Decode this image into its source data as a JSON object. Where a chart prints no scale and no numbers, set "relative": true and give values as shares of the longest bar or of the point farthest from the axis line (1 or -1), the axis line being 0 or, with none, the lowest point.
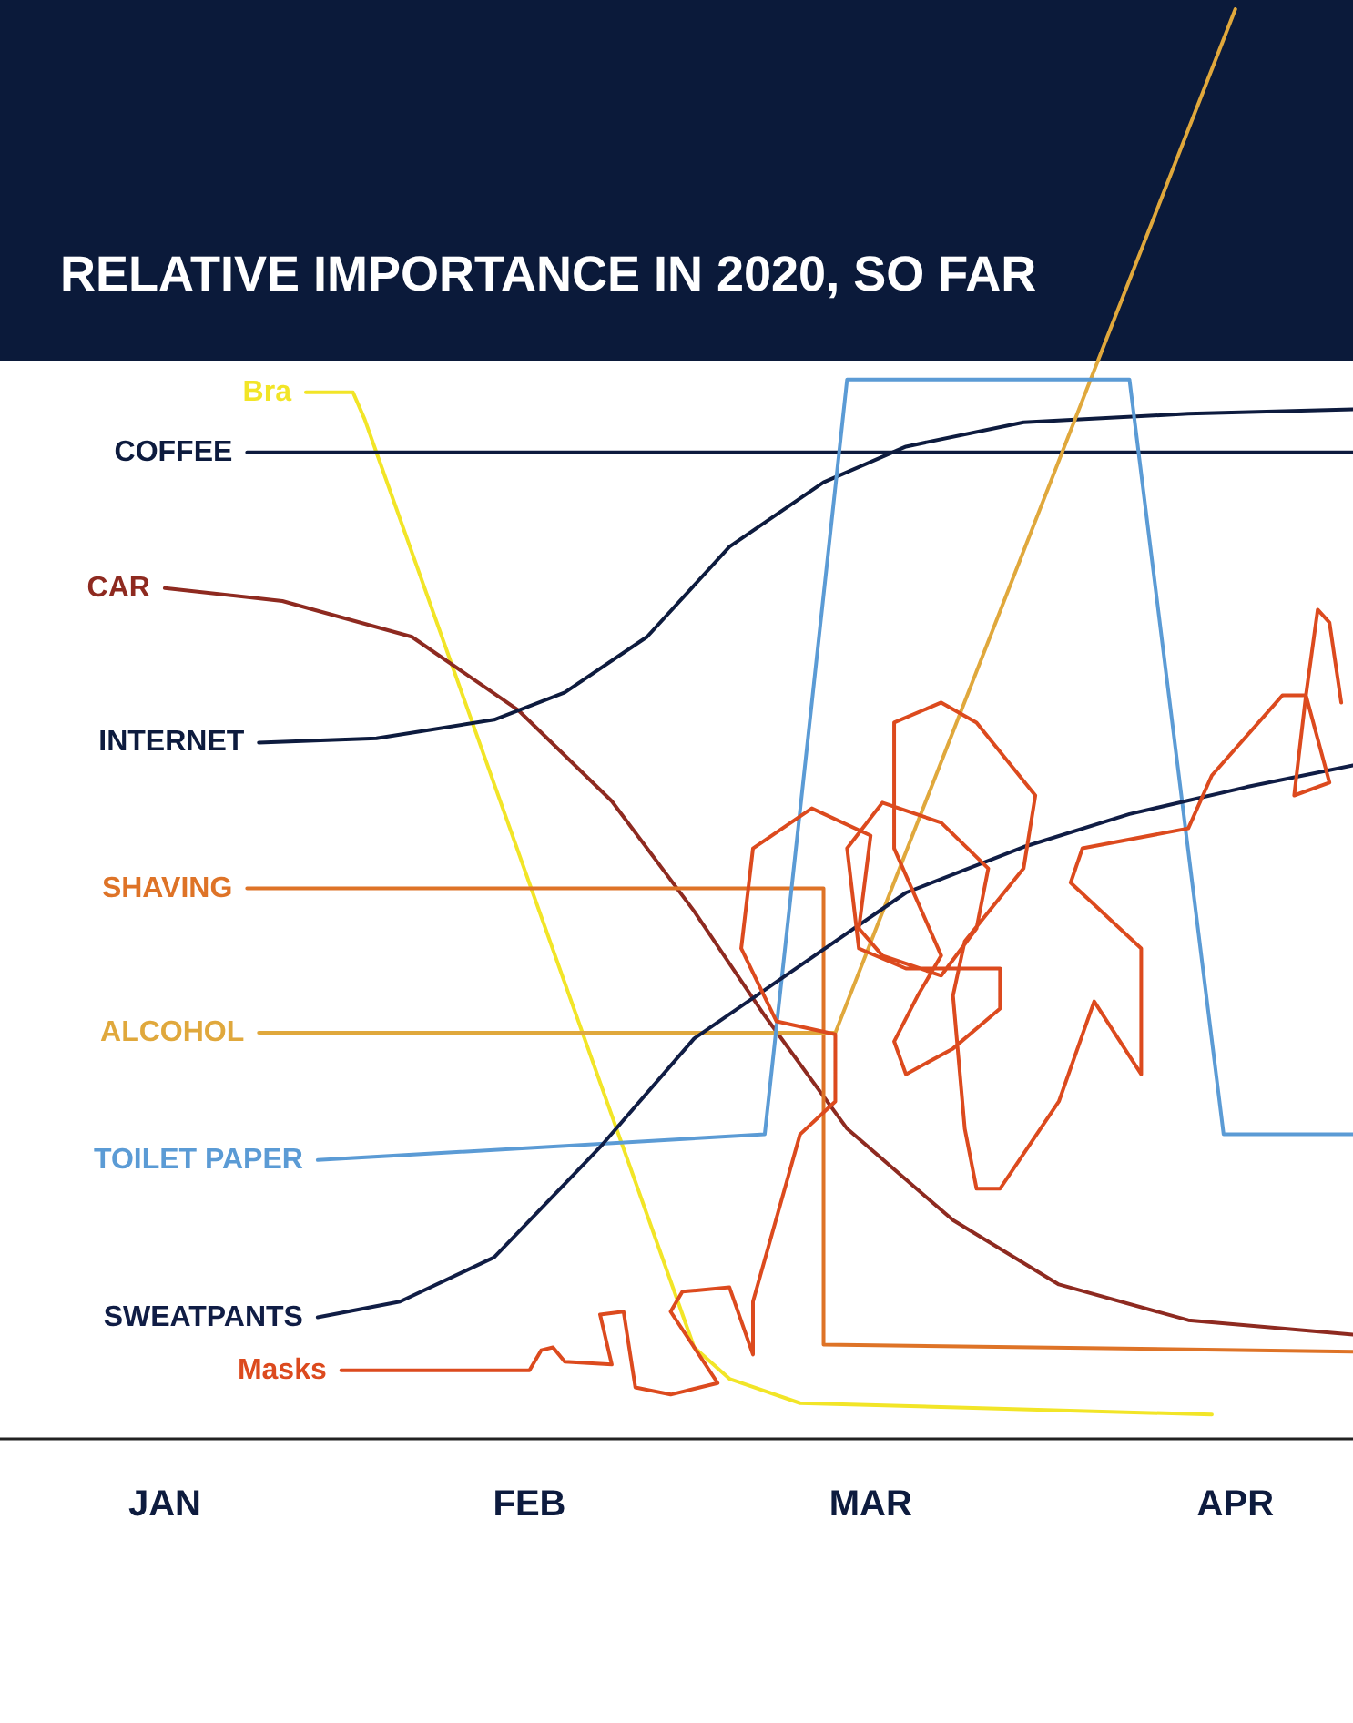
{
  "chart_data": {
    "type": "line",
    "title": "RELATIVE IMPORTANCE IN 2020, SO FAR",
    "relative": true,
    "grid": false,
    "legend": false,
    "marker": "none",
    "line_style": "solid",
    "xlim": [
      "2019-12-18",
      "2020-04-11"
    ],
    "xticks": [
      {
        "value": "2020-01-01",
        "label": "JAN"
      },
      {
        "value": "2020-02-01",
        "label": "FEB"
      },
      {
        "value": "2020-03-01",
        "label": "MAR"
      },
      {
        "value": "2020-04-01",
        "label": "APR"
      }
    ],
    "series": [
      {
        "name": "Bra",
        "color": "#f2e527",
        "x": [
          "2020-01-13",
          "2020-01-17",
          "2020-01-18",
          "2020-02-15",
          "2020-02-18",
          "2020-02-24",
          "2020-03-30"
        ],
        "values": [
          0.732,
          0.732,
          0.713,
          0.064,
          0.042,
          0.025,
          0.017
        ]
      },
      {
        "name": "COFFEE",
        "color": "#0d1b3e",
        "x": [
          "2020-01-08",
          "2020-04-11"
        ],
        "values": [
          0.69,
          0.69
        ]
      },
      {
        "name": "CAR",
        "color": "#8e2a20",
        "x": [
          "2020-01-01",
          "2020-01-11",
          "2020-01-22",
          "2020-01-31",
          "2020-02-08",
          "2020-02-15",
          "2020-02-21",
          "2020-02-28",
          "2020-03-08",
          "2020-03-17",
          "2020-03-28",
          "2020-04-11"
        ],
        "values": [
          0.595,
          0.586,
          0.561,
          0.51,
          0.446,
          0.369,
          0.296,
          0.217,
          0.153,
          0.108,
          0.083,
          0.073
        ]
      },
      {
        "name": "INTERNET",
        "color": "#0d1b3e",
        "x": [
          "2020-01-09",
          "2020-01-19",
          "2020-01-29",
          "2020-02-04",
          "2020-02-11",
          "2020-02-18",
          "2020-02-26",
          "2020-03-04",
          "2020-03-14",
          "2020-03-28",
          "2020-04-11"
        ],
        "values": [
          0.487,
          0.49,
          0.503,
          0.522,
          0.561,
          0.624,
          0.669,
          0.694,
          0.711,
          0.717,
          0.72
        ]
      },
      {
        "name": "SHAVING",
        "color": "#de7327",
        "x": [
          "2020-01-08",
          "2020-02-26",
          "2020-02-26",
          "2020-04-11"
        ],
        "values": [
          0.385,
          0.385,
          0.066,
          0.061
        ]
      },
      {
        "name": "ALCOHOL",
        "color": "#e0a83c",
        "x": [
          "2020-01-09",
          "2020-02-27",
          "2020-04-01"
        ],
        "values": [
          0.284,
          0.284,
          1.0
        ]
      },
      {
        "name": "TOILET PAPER",
        "color": "#5b9bd5",
        "x": [
          "2020-01-14",
          "2020-02-21",
          "2020-02-28",
          "2020-03-23",
          "2020-03-31",
          "2020-04-11"
        ],
        "values": [
          0.195,
          0.213,
          0.741,
          0.741,
          0.213,
          0.213
        ]
      },
      {
        "name": "SWEATPANTS",
        "color": "#101d45",
        "x": [
          "2020-01-14",
          "2020-01-21",
          "2020-01-29",
          "2020-02-07",
          "2020-02-15",
          "2020-02-24",
          "2020-03-04",
          "2020-03-14",
          "2020-03-23",
          "2020-04-02",
          "2020-04-11"
        ],
        "values": [
          0.085,
          0.096,
          0.127,
          0.204,
          0.28,
          0.331,
          0.382,
          0.414,
          0.437,
          0.456,
          0.471
        ]
      },
      {
        "name": "Masks",
        "color": "#dc4a1e",
        "x": [
          "2020-01-16",
          "2020-02-01",
          "2020-02-02",
          "2020-02-03",
          "2020-02-04",
          "2020-02-08",
          "2020-02-07",
          "2020-02-09",
          "2020-02-10",
          "2020-02-13",
          "2020-02-17",
          "2020-02-13",
          "2020-02-14",
          "2020-02-18",
          "2020-02-20",
          "2020-02-20",
          "2020-02-24",
          "2020-02-27",
          "2020-02-27",
          "2020-02-22",
          "2020-02-19",
          "2020-02-20",
          "2020-02-25",
          "2020-03-01",
          "2020-02-29",
          "2020-03-02",
          "2020-03-07",
          "2020-03-10",
          "2020-03-11",
          "2020-03-07",
          "2020-03-02",
          "2020-02-28",
          "2020-02-29",
          "2020-03-04",
          "2020-03-12",
          "2020-03-12",
          "2020-03-08",
          "2020-03-04",
          "2020-03-03",
          "2020-03-05",
          "2020-03-07",
          "2020-03-03",
          "2020-03-03",
          "2020-03-07",
          "2020-03-10",
          "2020-03-15",
          "2020-03-14",
          "2020-03-09",
          "2020-03-08",
          "2020-03-09",
          "2020-03-10",
          "2020-03-12",
          "2020-03-17",
          "2020-03-20",
          "2020-03-24",
          "2020-03-24",
          "2020-03-18",
          "2020-03-19",
          "2020-03-28",
          "2020-03-30",
          "2020-04-05",
          "2020-04-07",
          "2020-04-09",
          "2020-04-06",
          "2020-04-07",
          "2020-04-08",
          "2020-04-09",
          "2020-04-10"
        ],
        "values": [
          0.048,
          0.048,
          0.062,
          0.064,
          0.054,
          0.052,
          0.087,
          0.089,
          0.036,
          0.031,
          0.039,
          0.089,
          0.103,
          0.106,
          0.059,
          0.096,
          0.213,
          0.236,
          0.283,
          0.292,
          0.343,
          0.413,
          0.441,
          0.422,
          0.357,
          0.338,
          0.324,
          0.357,
          0.399,
          0.431,
          0.445,
          0.413,
          0.343,
          0.329,
          0.329,
          0.301,
          0.273,
          0.255,
          0.278,
          0.31,
          0.338,
          0.413,
          0.501,
          0.515,
          0.501,
          0.45,
          0.399,
          0.348,
          0.31,
          0.217,
          0.175,
          0.175,
          0.236,
          0.306,
          0.255,
          0.343,
          0.389,
          0.413,
          0.427,
          0.464,
          0.52,
          0.52,
          0.459,
          0.45,
          0.52,
          0.58,
          0.571,
          0.515
        ]
      }
    ]
  }
}
